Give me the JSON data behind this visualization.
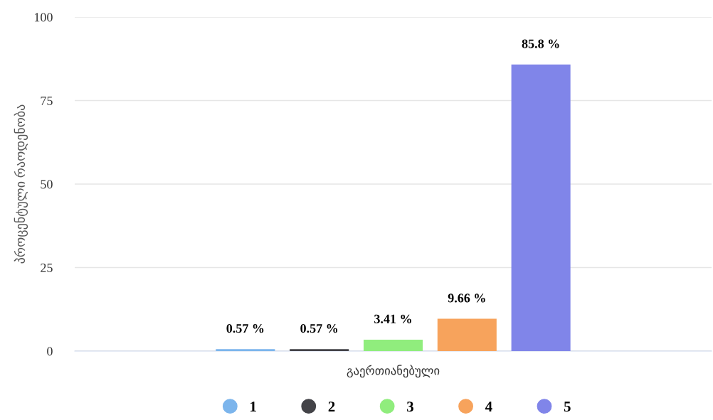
{
  "chart_data": {
    "type": "bar",
    "ylabel": "პროცენტული რაოდენობა",
    "categories": [
      "გაერთიანებული"
    ],
    "series": [
      {
        "name": "1",
        "color": "#7cb5ec",
        "values": [
          0.57
        ],
        "value_labels": [
          "0.57 %"
        ]
      },
      {
        "name": "2",
        "color": "#434348",
        "values": [
          0.57
        ],
        "value_labels": [
          "0.57 %"
        ]
      },
      {
        "name": "3",
        "color": "#90ed7d",
        "values": [
          3.41
        ],
        "value_labels": [
          "3.41 %"
        ]
      },
      {
        "name": "4",
        "color": "#f7a35c",
        "values": [
          9.66
        ],
        "value_labels": [
          "9.66 %"
        ]
      },
      {
        "name": "5",
        "color": "#8085e9",
        "values": [
          85.8
        ],
        "value_labels": [
          "85.8 %"
        ]
      }
    ],
    "ylim": [
      0,
      100
    ],
    "yticks": [
      0,
      25,
      50,
      75,
      100
    ],
    "grid": "y",
    "legend": "bottom",
    "marker": "circle"
  }
}
